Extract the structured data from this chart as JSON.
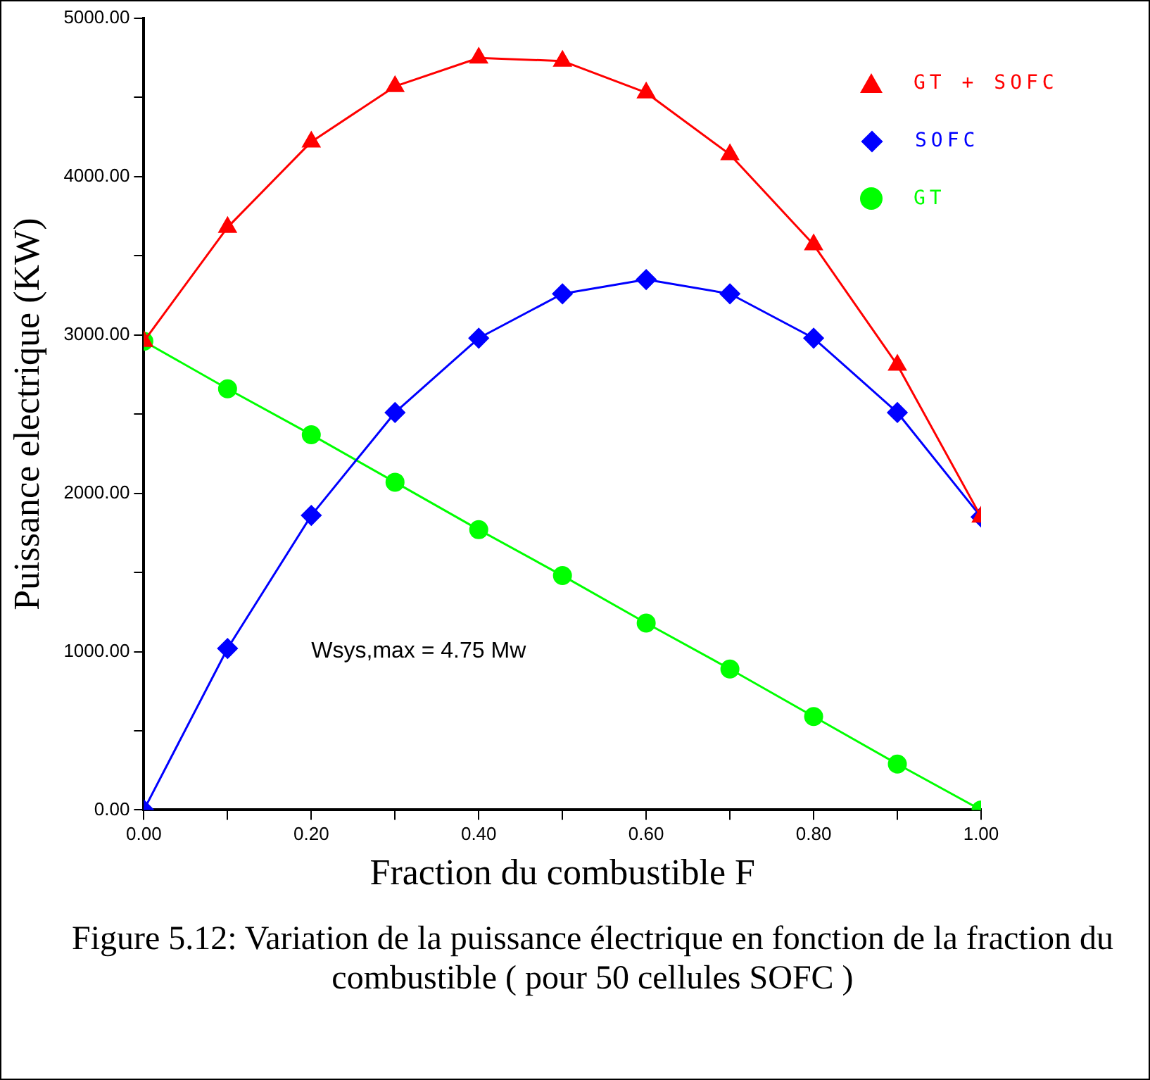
{
  "chart_data": {
    "type": "line",
    "xlabel": "Fraction du combustible F",
    "ylabel": "Puissance electrique (KW)",
    "x": [
      0,
      0.1,
      0.2,
      0.3,
      0.4,
      0.5,
      0.6,
      0.7,
      0.8,
      0.9,
      1.0
    ],
    "series": [
      {
        "name": "GT + SOFC",
        "color": "#ff0000",
        "marker": "triangle",
        "values": [
          2960,
          3680,
          4220,
          4570,
          4750,
          4730,
          4530,
          4140,
          3570,
          2810,
          1850
        ]
      },
      {
        "name": "SOFC",
        "color": "#0000ff",
        "marker": "diamond",
        "values": [
          0,
          1020,
          1860,
          2510,
          2980,
          3260,
          3350,
          3260,
          2980,
          2510,
          1850
        ]
      },
      {
        "name": "GT",
        "color": "#00ff00",
        "marker": "circle",
        "values": [
          2960,
          2660,
          2370,
          2070,
          1770,
          1480,
          1180,
          890,
          590,
          290,
          0
        ]
      }
    ],
    "xlim": [
      0,
      1
    ],
    "xticks": [
      {
        "value": 0,
        "label": "0.00"
      },
      {
        "value": 0.1,
        "label": null
      },
      {
        "value": 0.2,
        "label": "0.20"
      },
      {
        "value": 0.3,
        "label": null
      },
      {
        "value": 0.4,
        "label": "0.40"
      },
      {
        "value": 0.5,
        "label": null
      },
      {
        "value": 0.6,
        "label": "0.60"
      },
      {
        "value": 0.7,
        "label": null
      },
      {
        "value": 0.8,
        "label": "0.80"
      },
      {
        "value": 0.9,
        "label": null
      },
      {
        "value": 1,
        "label": "1.00"
      }
    ],
    "ylim": [
      0,
      5000
    ],
    "yticks": [
      {
        "value": 0,
        "label": "0.00"
      },
      {
        "value": 500,
        "label": null
      },
      {
        "value": 1000,
        "label": "1000.00"
      },
      {
        "value": 1500,
        "label": null
      },
      {
        "value": 2000,
        "label": "2000.00"
      },
      {
        "value": 2500,
        "label": null
      },
      {
        "value": 3000,
        "label": "3000.00"
      },
      {
        "value": 3500,
        "label": null
      },
      {
        "value": 4000,
        "label": "4000.00"
      },
      {
        "value": 4500,
        "label": null
      },
      {
        "value": 5000,
        "label": "5000.00"
      }
    ],
    "grid": false,
    "legend": "top right",
    "line_style": "solid",
    "annotations": [
      "Wsys,max = 4.75 Mw",
      "Figure 5.12: Variation de la puissance électrique en fonction de la fraction du combustible ( pour 50 cellules SOFC )"
    ]
  }
}
